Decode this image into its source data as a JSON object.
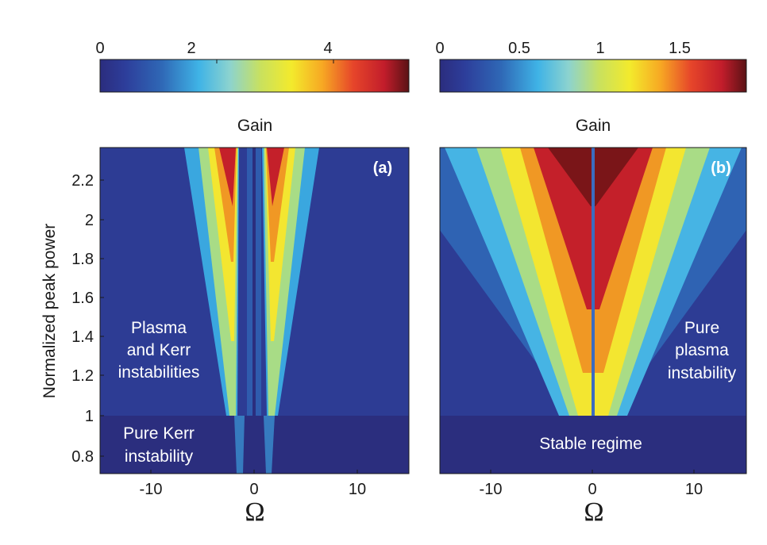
{
  "chart_data": [
    {
      "type": "heatmap",
      "panel_label": "(a)",
      "title": "Gain",
      "xlabel": "Ω",
      "ylabel": "Normalized peak power",
      "xlim": [
        -15,
        15
      ],
      "ylim": [
        0.7,
        2.35
      ],
      "xticks": [
        "-10",
        "0",
        "10"
      ],
      "yticks": [
        "0.8",
        "1",
        "1.2",
        "1.4",
        "1.6",
        "1.8",
        "2",
        "2.2"
      ],
      "colorbar": {
        "range": [
          0,
          5.3
        ],
        "ticks": [
          "0",
          "2",
          "4"
        ],
        "label": "Gain"
      },
      "threshold_power": 1,
      "annotations": [
        "Plasma",
        "and Kerr",
        "instabilities",
        "Pure Kerr",
        "instability"
      ]
    },
    {
      "type": "heatmap",
      "panel_label": "(b)",
      "title": "Gain",
      "xlabel": "Ω",
      "ylabel": "",
      "xlim": [
        -15,
        15
      ],
      "ylim": [
        0.7,
        2.35
      ],
      "xticks": [
        "-10",
        "0",
        "10"
      ],
      "yticks": [],
      "colorbar": {
        "range": [
          0,
          1.85
        ],
        "ticks": [
          "0",
          "0.5",
          "1",
          "1.5"
        ],
        "label": "Gain"
      },
      "threshold_power": 1,
      "annotations": [
        "Pure",
        "plasma",
        "instability",
        "Stable regime"
      ]
    }
  ]
}
